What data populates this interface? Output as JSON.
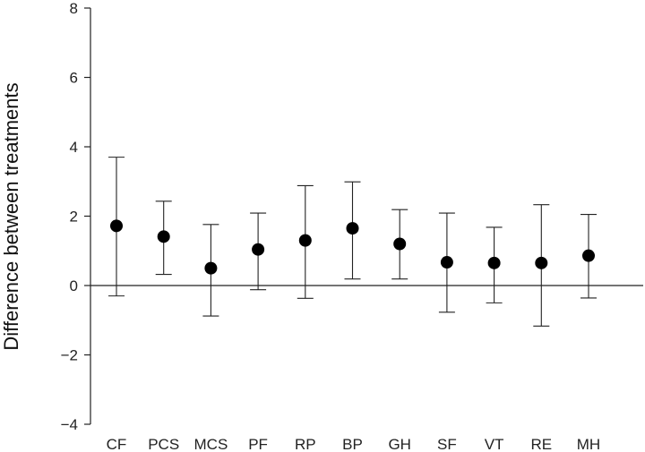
{
  "chart_data": {
    "type": "scatter",
    "xlabel": "",
    "ylabel": "Difference between treatments",
    "ylim": [
      -4,
      8
    ],
    "yticks": [
      -4,
      -2,
      0,
      2,
      4,
      6,
      8
    ],
    "ytick_labels": [
      "−4",
      "−2",
      "0",
      "2",
      "4",
      "6",
      "8"
    ],
    "categories": [
      "CF",
      "PCS",
      "MCS",
      "PF",
      "RP",
      "BP",
      "GH",
      "SF",
      "VT",
      "RE",
      "MH"
    ],
    "values": [
      1.72,
      1.41,
      0.5,
      1.04,
      1.3,
      1.65,
      1.2,
      0.67,
      0.65,
      0.65,
      0.86
    ],
    "lower": [
      -0.3,
      0.32,
      -0.88,
      -0.12,
      -0.37,
      0.19,
      0.19,
      -0.77,
      -0.5,
      -1.17,
      -0.36
    ],
    "upper": [
      3.7,
      2.43,
      1.76,
      2.09,
      2.88,
      2.99,
      2.19,
      2.09,
      1.68,
      2.33,
      2.05
    ],
    "reference_line": 0,
    "grid": false,
    "legend": "none"
  }
}
